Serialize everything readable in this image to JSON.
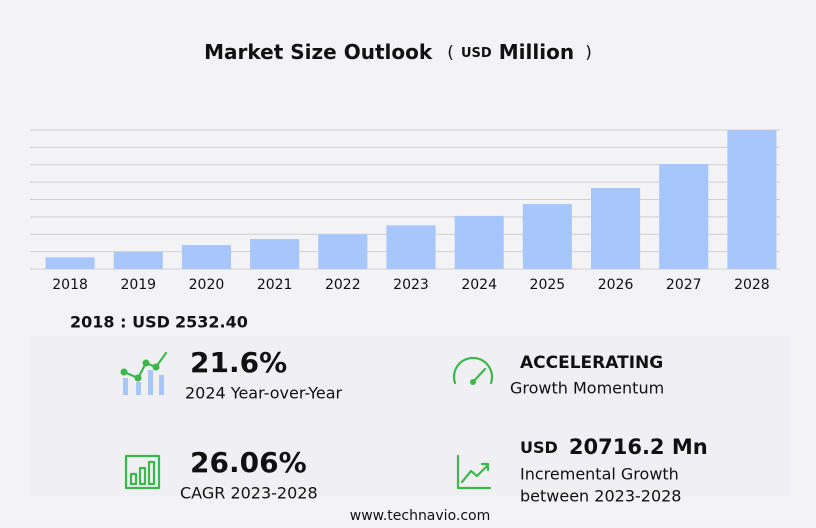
{
  "chart_data": {
    "type": "bar",
    "title": "Market Size Outlook",
    "unit_open": "(",
    "currency": "USD",
    "unit": "Million",
    "unit_close": ")",
    "categories": [
      "2018",
      "2019",
      "2020",
      "2021",
      "2022",
      "2023",
      "2024",
      "2025",
      "2026",
      "2027",
      "2028"
    ],
    "values": [
      2532.4,
      3700,
      5200,
      6500,
      7600,
      9481,
      11529,
      14100,
      17600,
      22800,
      30197
    ],
    "color": "#a7c7fc",
    "ylim": [
      0,
      30197
    ],
    "grid": true
  },
  "stats": {
    "base_label": "2018 : USD",
    "base_value": "2532.40",
    "yoy_value": "21.6%",
    "yoy_label": "2024 Year-over-Year",
    "momentum_value": "ACCELERATING",
    "momentum_label": "Growth Momentum",
    "cagr_value": "26.06%",
    "cagr_label": "CAGR 2023-2028",
    "incr_currency": "USD",
    "incr_value": "20716.2 Mn",
    "incr_label_1": "Incremental Growth",
    "incr_label_2": "between 2023-2028"
  },
  "footer": "www.technavio.com"
}
